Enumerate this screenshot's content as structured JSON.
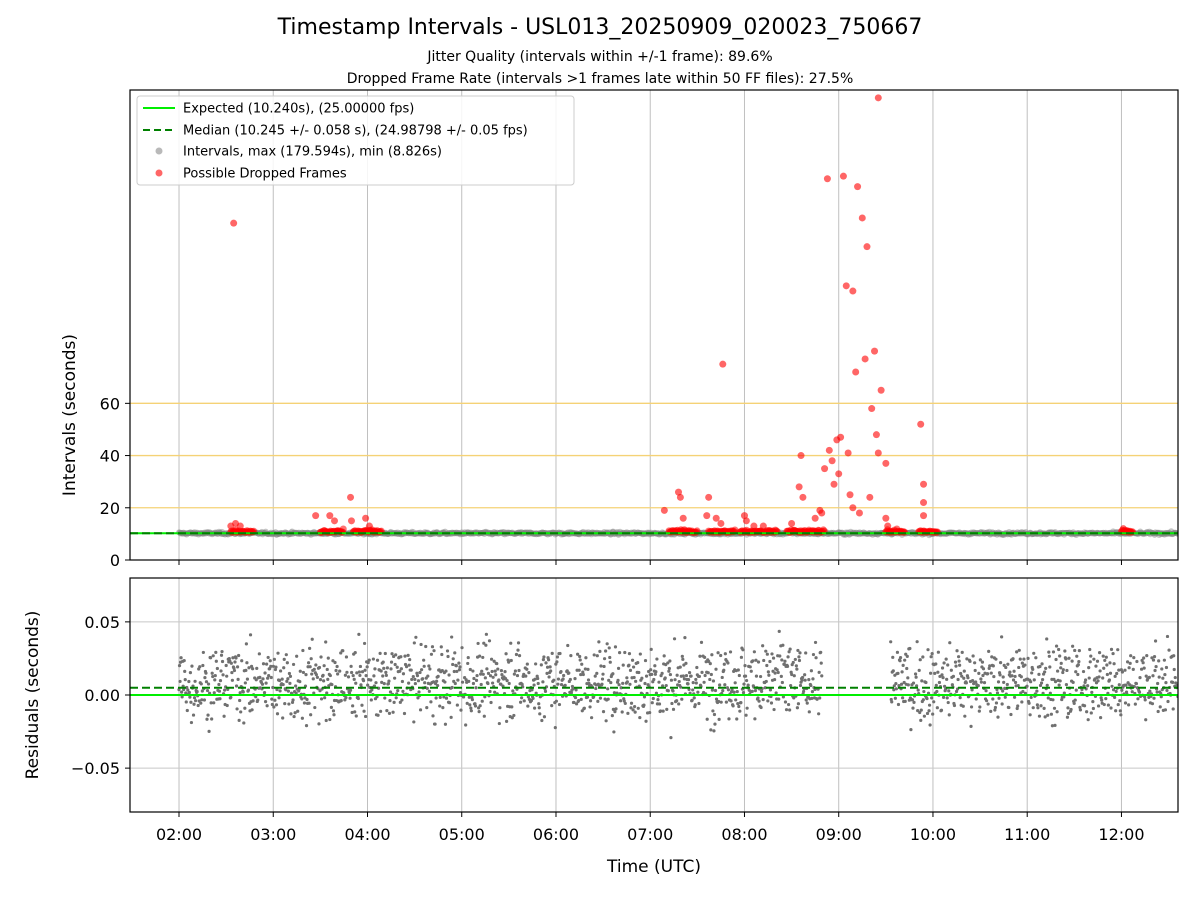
{
  "chart_data": {
    "type": "scatter",
    "title": "Timestamp Intervals - USL013_20250909_020023_750667",
    "subtitles": [
      "Jitter Quality (intervals within +/-1 frame): 89.6%",
      "Dropped Frame Rate (intervals >1 frames late within 50 FF files): 27.5%"
    ],
    "xlabel": "Time (UTC)",
    "x_tick_labels": [
      "02:00",
      "03:00",
      "04:00",
      "05:00",
      "06:00",
      "07:00",
      "08:00",
      "09:00",
      "10:00",
      "11:00",
      "12:00"
    ],
    "x_range_hours": [
      1.48,
      12.6
    ],
    "panels": [
      {
        "name": "intervals",
        "ylabel": "Intervals (seconds)",
        "y_tick_labels": [
          "0",
          "20",
          "40",
          "60"
        ],
        "ylim": [
          0,
          180
        ],
        "reference_lines": [
          {
            "label": "Expected (10.240s), (25.00000 fps)",
            "y": 10.24,
            "color": "#00ee00",
            "style": "solid"
          },
          {
            "label": "Median (10.245 +/- 0.058 s), (24.98798 +/- 0.05 fps)",
            "y": 10.245,
            "color": "#008000",
            "style": "dashed"
          }
        ],
        "threshold_lines": [
          20,
          40,
          60
        ],
        "threshold_color": "#f5d276",
        "series": [
          {
            "name": "Intervals, max (179.594s), min (8.826s)",
            "color": "#808080",
            "max": 179.594,
            "min": 8.826
          },
          {
            "name": "Possible Dropped Frames",
            "color": "#ff0000",
            "points": [
              [
                2.58,
                129
              ],
              [
                2.55,
                13
              ],
              [
                2.6,
                14
              ],
              [
                2.65,
                13
              ],
              [
                3.45,
                17
              ],
              [
                3.6,
                17
              ],
              [
                3.65,
                15
              ],
              [
                3.82,
                24
              ],
              [
                3.83,
                15
              ],
              [
                3.98,
                16
              ],
              [
                4.02,
                13
              ],
              [
                7.15,
                19
              ],
              [
                7.3,
                26
              ],
              [
                7.32,
                24
              ],
              [
                7.35,
                16
              ],
              [
                7.6,
                17
              ],
              [
                7.62,
                24
              ],
              [
                7.7,
                16
              ],
              [
                7.75,
                14
              ],
              [
                7.77,
                75
              ],
              [
                8.0,
                17
              ],
              [
                8.02,
                15
              ],
              [
                8.1,
                13
              ],
              [
                8.2,
                13
              ],
              [
                8.5,
                14
              ],
              [
                8.58,
                28
              ],
              [
                8.6,
                40
              ],
              [
                8.62,
                24
              ],
              [
                8.75,
                16
              ],
              [
                8.8,
                19
              ],
              [
                8.82,
                18
              ],
              [
                8.85,
                35
              ],
              [
                8.88,
                146
              ],
              [
                8.9,
                42
              ],
              [
                8.93,
                38
              ],
              [
                8.95,
                29
              ],
              [
                8.98,
                46
              ],
              [
                9.0,
                33
              ],
              [
                9.02,
                47
              ],
              [
                9.05,
                147
              ],
              [
                9.08,
                105
              ],
              [
                9.1,
                41
              ],
              [
                9.12,
                25
              ],
              [
                9.15,
                103
              ],
              [
                9.15,
                20
              ],
              [
                9.18,
                72
              ],
              [
                9.2,
                143
              ],
              [
                9.22,
                18
              ],
              [
                9.25,
                131
              ],
              [
                9.28,
                77
              ],
              [
                9.3,
                120
              ],
              [
                9.33,
                24
              ],
              [
                9.35,
                58
              ],
              [
                9.38,
                80
              ],
              [
                9.4,
                48
              ],
              [
                9.42,
                41
              ],
              [
                9.42,
                177
              ],
              [
                9.45,
                65
              ],
              [
                9.5,
                37
              ],
              [
                9.5,
                16
              ],
              [
                9.52,
                13
              ],
              [
                9.87,
                52
              ],
              [
                9.9,
                29
              ],
              [
                9.9,
                22
              ],
              [
                9.9,
                17
              ],
              [
                12.02,
                12
              ]
            ]
          }
        ]
      },
      {
        "name": "residuals",
        "ylabel": "Residuals (seconds)",
        "y_tick_labels": [
          "0.05",
          "0.00",
          "−0.05"
        ],
        "ylim": [
          -0.08,
          0.08
        ],
        "reference_lines": [
          {
            "y": 0.0,
            "color": "#00ee00",
            "style": "solid"
          },
          {
            "y": 0.005,
            "color": "#008000",
            "style": "dashed"
          }
        ],
        "gap_hours": [
          8.82,
          9.55
        ]
      }
    ],
    "legend": {
      "location": "upper-left",
      "entries": [
        "Expected (10.240s), (25.00000 fps)",
        "Median (10.245 +/- 0.058 s), (24.98798 +/- 0.05 fps)",
        "Intervals, max (179.594s), min (8.826s)",
        "Possible Dropped Frames"
      ]
    },
    "grid": true
  }
}
